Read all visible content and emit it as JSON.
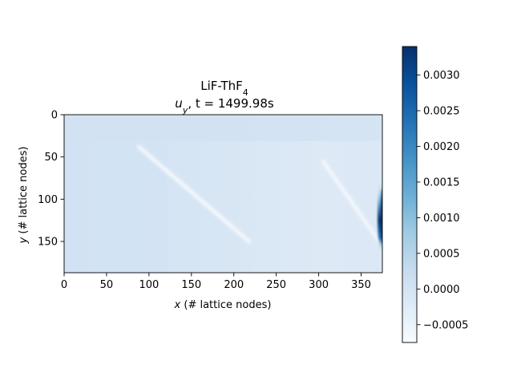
{
  "chart_data": {
    "type": "heatmap",
    "title": "LiF-ThF",
    "title_subscript": "4",
    "subtitle_var": "u",
    "subtitle_sub": "y",
    "subtitle_rest": ", t = 1499.98s",
    "xlabel_var": "x",
    "xlabel": "(# lattice nodes)",
    "ylabel_var": "y",
    "ylabel": "(# lattice nodes)",
    "xlim": [
      0,
      375
    ],
    "ylim": [
      187,
      0
    ],
    "x_ticks": [
      0,
      50,
      100,
      150,
      200,
      250,
      300,
      350
    ],
    "x_tick_labels": [
      "0",
      "50",
      "100",
      "150",
      "200",
      "250",
      "300",
      "350"
    ],
    "y_ticks": [
      0,
      50,
      100,
      150
    ],
    "y_tick_labels": [
      "0",
      "50",
      "100",
      "150"
    ],
    "colormap": "Blues",
    "colorbar": {
      "min": -0.00075,
      "max": 0.0034,
      "ticks": [
        -0.0005,
        0.0,
        0.0005,
        0.001,
        0.0015,
        0.002,
        0.0025,
        0.003
      ],
      "tick_labels": [
        "−0.0005",
        "0.0000",
        "0.0005",
        "0.0010",
        "0.0015",
        "0.0020",
        "0.0025",
        "0.0030"
      ]
    },
    "field": {
      "background_value": 0.0,
      "upper_band_y": [
        0,
        31
      ],
      "upper_band_value": 0.0,
      "streaks": [
        {
          "x": [
            88,
            218
          ],
          "y": [
            38,
            150
          ],
          "value": -0.0003
        },
        {
          "x": [
            305,
            375
          ],
          "y": [
            55,
            155
          ],
          "value": -0.0004
        }
      ],
      "right_edge_peak": {
        "x": 375,
        "y_center": 120,
        "value": 0.0034
      }
    }
  }
}
